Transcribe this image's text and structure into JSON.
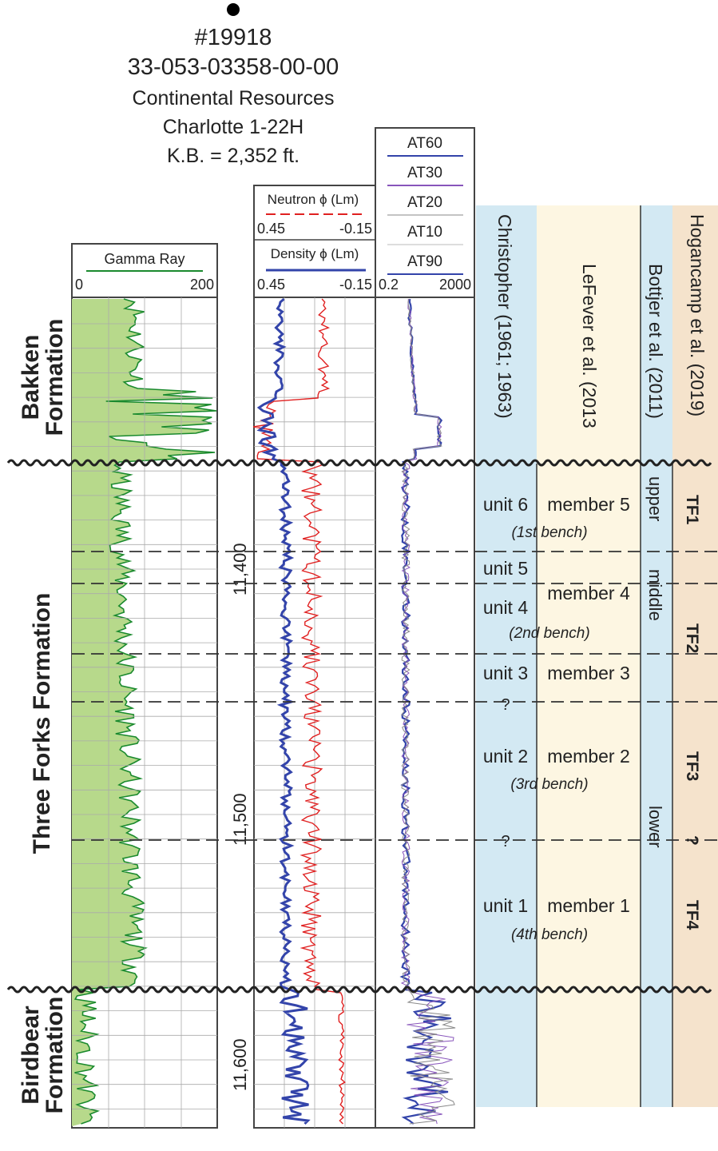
{
  "header": {
    "well_number": "#19918",
    "api_number": "33-053-03358-00-00",
    "operator": "Continental Resources",
    "well_name": "Charlotte 1-22H",
    "kb": "K.B. = 2,352 ft."
  },
  "formations": {
    "bakken": [
      "Bakken",
      "Formation"
    ],
    "three_forks": "Three Forks Formation",
    "birdbear": [
      "Birdbear",
      "Formation"
    ]
  },
  "tracks": {
    "gamma": {
      "title": "Gamma Ray",
      "min": "0",
      "max": "200",
      "color": "#1a8a2e",
      "fill": "#b7d98b"
    },
    "neutron": {
      "title": "Neutron ϕ (Lm)",
      "left": "0.45",
      "right": "-0.15",
      "color": "#e02020"
    },
    "density": {
      "title": "Density ϕ (Lm)",
      "left": "0.45",
      "right": "-0.15",
      "color": "#3344aa"
    },
    "resistivity": {
      "curves": [
        "AT60",
        "AT30",
        "AT20",
        "AT10",
        "AT90"
      ],
      "curve_colors": [
        "#3344aa",
        "#8855bb",
        "#888888",
        "#bbbbbb",
        "#3344aa"
      ],
      "min": "0.2",
      "max": "2000"
    }
  },
  "depth_labels": [
    "11,400",
    "11,500",
    "11,600"
  ],
  "schemes": {
    "christopher": {
      "title": "Christopher (1961; 1963)",
      "color": "#d3e9f3",
      "units": [
        "unit 6",
        "unit 5",
        "unit 4",
        "unit 3",
        "?",
        "unit 2",
        "?",
        "unit 1"
      ]
    },
    "lefever": {
      "title": "LeFever et al. (2013",
      "color": "#fdf6e2",
      "members": [
        "member 5",
        "member 4",
        "member 3",
        "member 2",
        "member 1"
      ]
    },
    "benches": [
      "(1st bench)",
      "(2nd bench)",
      "(3rd bench)",
      "(4th bench)"
    ],
    "bottjer": {
      "title": "Bottjer et al. (2011)",
      "color": "#d3e9f3",
      "divisions": [
        "upper",
        "middle",
        "lower"
      ]
    },
    "hogancamp": {
      "title": "Hogancamp et al. (2019)",
      "color": "#f5e3cc",
      "units": [
        "TF1",
        "TF2",
        "TF3",
        "?",
        "TF4"
      ]
    }
  }
}
